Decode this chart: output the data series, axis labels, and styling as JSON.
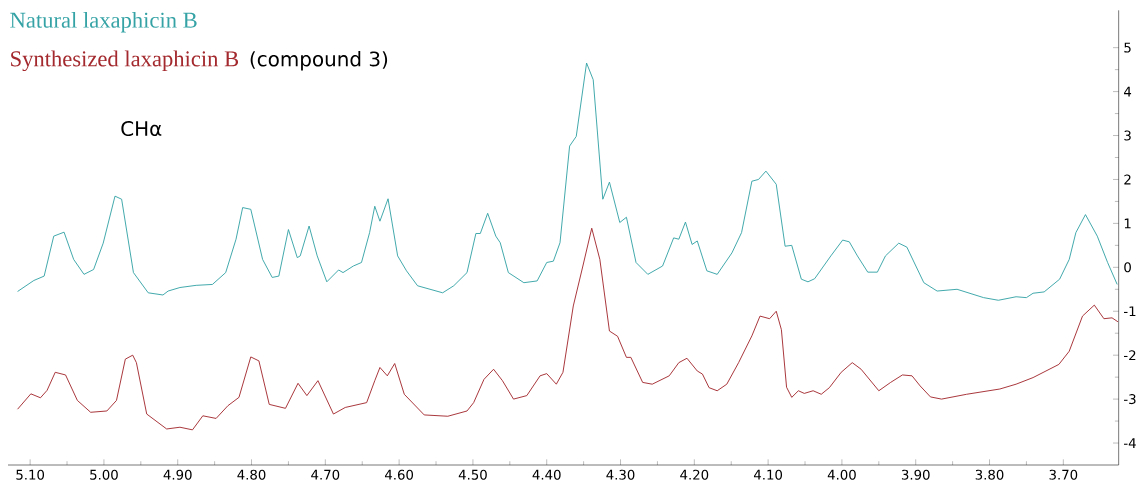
{
  "chart_data": {
    "type": "line",
    "xlim": [
      5.13,
      3.625
    ],
    "ylim": [
      -4.5,
      5.85
    ],
    "xticks": [
      {
        "value": 5.1,
        "label": "5.10"
      },
      {
        "value": 5.0,
        "label": "5.00"
      },
      {
        "value": 4.9,
        "label": "4.90"
      },
      {
        "value": 4.8,
        "label": "4.80"
      },
      {
        "value": 4.7,
        "label": "4.70"
      },
      {
        "value": 4.6,
        "label": "4.60"
      },
      {
        "value": 4.5,
        "label": "4.50"
      },
      {
        "value": 4.4,
        "label": "4.40"
      },
      {
        "value": 4.3,
        "label": "4.30"
      },
      {
        "value": 4.2,
        "label": "4.20"
      },
      {
        "value": 4.1,
        "label": "4.10"
      },
      {
        "value": 4.0,
        "label": "4.00"
      },
      {
        "value": 3.9,
        "label": "3.90"
      },
      {
        "value": 3.8,
        "label": "3.80"
      },
      {
        "value": 3.7,
        "label": "3.70"
      }
    ],
    "yticks": [
      5,
      4,
      3,
      2,
      1,
      0,
      -1,
      -2,
      -3,
      -4
    ],
    "legend": "top left",
    "marker": "none",
    "line_style": "solid",
    "grid": false,
    "annotations": [
      "CHα",
      "(compound 3)"
    ],
    "series": [
      {
        "name": "Natural laxaphicin B",
        "color": "#35a3a6",
        "x": [
          5.117,
          5.095,
          5.081,
          5.068,
          5.054,
          5.041,
          5.027,
          5.014,
          5.001,
          4.985,
          4.976,
          4.96,
          4.94,
          4.92,
          4.913,
          4.897,
          4.875,
          4.853,
          4.835,
          4.821,
          4.812,
          4.801,
          4.785,
          4.772,
          4.763,
          4.75,
          4.738,
          4.734,
          4.722,
          4.711,
          4.698,
          4.682,
          4.676,
          4.662,
          4.651,
          4.64,
          4.633,
          4.626,
          4.615,
          4.602,
          4.59,
          4.575,
          4.541,
          4.526,
          4.508,
          4.496,
          4.49,
          4.48,
          4.469,
          4.463,
          4.452,
          4.431,
          4.413,
          4.4,
          4.391,
          4.382,
          4.369,
          4.36,
          4.346,
          4.337,
          4.324,
          4.315,
          4.301,
          4.292,
          4.279,
          4.263,
          4.243,
          4.228,
          4.221,
          4.212,
          4.203,
          4.196,
          4.183,
          4.169,
          4.149,
          4.136,
          4.122,
          4.113,
          4.103,
          4.089,
          4.077,
          4.068,
          4.055,
          4.046,
          4.037,
          4.015,
          3.999,
          3.99,
          3.979,
          3.965,
          3.952,
          3.941,
          3.923,
          3.912,
          3.889,
          3.871,
          3.844,
          3.808,
          3.788,
          3.764,
          3.75,
          3.741,
          3.726,
          3.705,
          3.692,
          3.683,
          3.67,
          3.654,
          3.64,
          3.627
        ],
        "values": [
          -0.55,
          -0.3,
          -0.2,
          0.71,
          0.8,
          0.18,
          -0.16,
          -0.05,
          0.55,
          1.62,
          1.55,
          -0.12,
          -0.58,
          -0.63,
          -0.54,
          -0.46,
          -0.41,
          -0.39,
          -0.12,
          0.64,
          1.36,
          1.32,
          0.18,
          -0.23,
          -0.2,
          0.86,
          0.22,
          0.26,
          0.94,
          0.26,
          -0.33,
          -0.06,
          -0.12,
          0.03,
          0.11,
          0.79,
          1.39,
          1.05,
          1.56,
          0.26,
          -0.08,
          -0.42,
          -0.58,
          -0.42,
          -0.12,
          0.77,
          0.77,
          1.23,
          0.71,
          0.56,
          -0.12,
          -0.35,
          -0.31,
          0.11,
          0.14,
          0.56,
          2.76,
          2.98,
          4.65,
          4.27,
          1.55,
          1.94,
          1.02,
          1.14,
          0.11,
          -0.16,
          0.03,
          0.67,
          0.64,
          1.03,
          0.52,
          0.6,
          -0.08,
          -0.16,
          0.33,
          0.79,
          1.96,
          2.0,
          2.19,
          1.89,
          0.48,
          0.5,
          -0.27,
          -0.33,
          -0.26,
          0.26,
          0.62,
          0.58,
          0.26,
          -0.11,
          -0.11,
          0.26,
          0.55,
          0.46,
          -0.35,
          -0.54,
          -0.5,
          -0.69,
          -0.75,
          -0.67,
          -0.69,
          -0.59,
          -0.56,
          -0.27,
          0.18,
          0.79,
          1.2,
          0.71,
          0.11,
          -0.39
        ]
      },
      {
        "name": "Synthesized laxaphicin B",
        "color": "#a3292e",
        "x": [
          5.117,
          5.099,
          5.086,
          5.077,
          5.066,
          5.052,
          5.036,
          5.018,
          4.996,
          4.983,
          4.971,
          4.961,
          4.956,
          4.942,
          4.915,
          4.897,
          4.88,
          4.866,
          4.848,
          4.832,
          4.817,
          4.801,
          4.79,
          4.776,
          4.754,
          4.737,
          4.725,
          4.71,
          4.689,
          4.673,
          4.644,
          4.633,
          4.626,
          4.616,
          4.606,
          4.593,
          4.566,
          4.534,
          4.508,
          4.499,
          4.485,
          4.472,
          4.46,
          4.445,
          4.427,
          4.409,
          4.4,
          4.387,
          4.378,
          4.364,
          4.351,
          4.339,
          4.328,
          4.315,
          4.304,
          4.292,
          4.286,
          4.27,
          4.257,
          4.234,
          4.221,
          4.21,
          4.196,
          4.189,
          4.18,
          4.169,
          4.156,
          4.14,
          4.122,
          4.111,
          4.098,
          4.089,
          4.082,
          4.075,
          4.068,
          4.059,
          4.051,
          4.039,
          4.028,
          4.017,
          4.001,
          3.986,
          3.974,
          3.95,
          3.934,
          3.918,
          3.905,
          3.894,
          3.88,
          3.865,
          3.831,
          3.786,
          3.764,
          3.741,
          3.706,
          3.692,
          3.674,
          3.658,
          3.645,
          3.634,
          3.626
        ],
        "values": [
          -3.23,
          -2.88,
          -2.97,
          -2.8,
          -2.39,
          -2.45,
          -3.03,
          -3.3,
          -3.27,
          -3.03,
          -2.09,
          -2.0,
          -2.17,
          -3.34,
          -3.68,
          -3.64,
          -3.7,
          -3.38,
          -3.44,
          -3.15,
          -2.96,
          -2.04,
          -2.13,
          -3.12,
          -3.21,
          -2.64,
          -2.92,
          -2.58,
          -3.34,
          -3.19,
          -3.08,
          -2.58,
          -2.28,
          -2.47,
          -2.19,
          -2.89,
          -3.36,
          -3.39,
          -3.27,
          -3.08,
          -2.55,
          -2.32,
          -2.58,
          -3.0,
          -2.92,
          -2.47,
          -2.42,
          -2.66,
          -2.39,
          -0.88,
          0.03,
          0.89,
          0.18,
          -1.45,
          -1.57,
          -2.05,
          -2.05,
          -2.62,
          -2.66,
          -2.47,
          -2.17,
          -2.07,
          -2.36,
          -2.43,
          -2.74,
          -2.81,
          -2.66,
          -2.17,
          -1.56,
          -1.11,
          -1.17,
          -1.0,
          -1.42,
          -2.73,
          -2.96,
          -2.81,
          -2.87,
          -2.81,
          -2.89,
          -2.74,
          -2.39,
          -2.17,
          -2.32,
          -2.81,
          -2.62,
          -2.45,
          -2.47,
          -2.7,
          -2.95,
          -3.0,
          -2.89,
          -2.77,
          -2.66,
          -2.51,
          -2.21,
          -1.91,
          -1.11,
          -0.86,
          -1.17,
          -1.15,
          -1.24
        ]
      }
    ]
  }
}
